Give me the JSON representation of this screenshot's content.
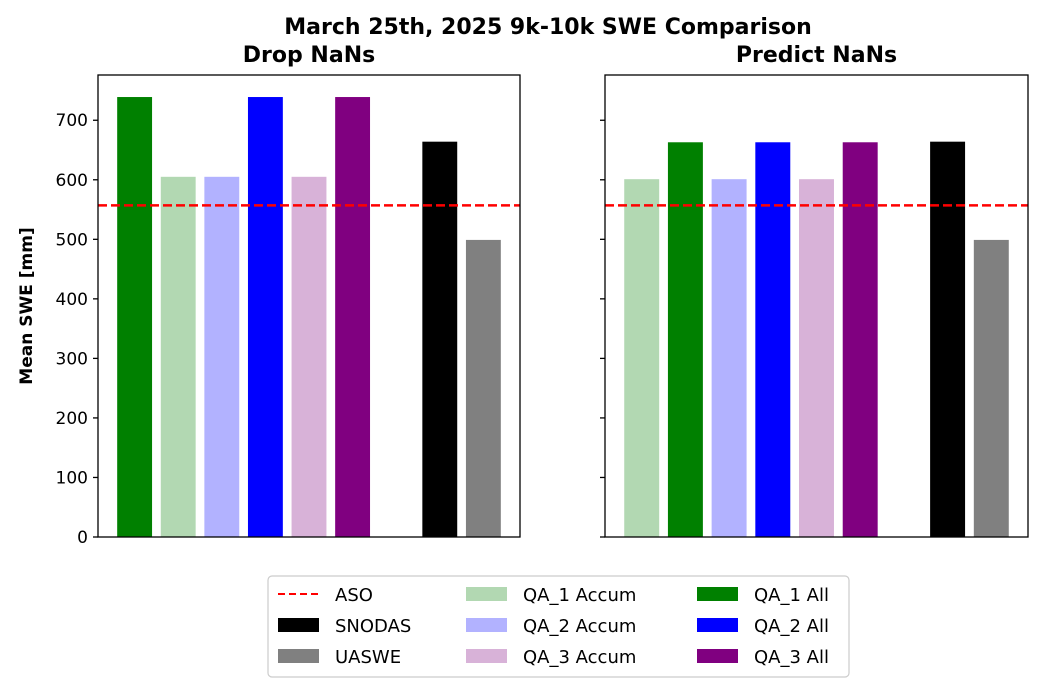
{
  "figure_title": "March 25th, 2025 9k-10k SWE Comparison",
  "colors": {
    "ASO": "#ff0000",
    "SNODAS": "#000000",
    "UASWE": "#808080",
    "QA_1 Accum": "#b2d8b2",
    "QA_2 Accum": "#b2b2ff",
    "QA_3 Accum": "#d8b2d8",
    "QA_1 All": "#008000",
    "QA_2 All": "#0000ff",
    "QA_3 All": "#800080"
  },
  "legend": {
    "position": "bottom-center",
    "columns": [
      [
        {
          "label": "ASO",
          "kind": "dashed-line"
        },
        {
          "label": "SNODAS",
          "kind": "patch"
        },
        {
          "label": "UASWE",
          "kind": "patch"
        }
      ],
      [
        {
          "label": "QA_1 Accum",
          "kind": "patch"
        },
        {
          "label": "QA_2 Accum",
          "kind": "patch"
        },
        {
          "label": "QA_3 Accum",
          "kind": "patch"
        }
      ],
      [
        {
          "label": "QA_1 All",
          "kind": "patch"
        },
        {
          "label": "QA_2 All",
          "kind": "patch"
        },
        {
          "label": "QA_3 All",
          "kind": "patch"
        }
      ]
    ]
  },
  "chart_data": [
    {
      "type": "bar",
      "title": "Drop NaNs",
      "ylabel": "Mean SWE [mm]",
      "xlabel": "",
      "ylim": [
        0,
        776
      ],
      "yticks": [
        0,
        100,
        200,
        300,
        400,
        500,
        600,
        700
      ],
      "show_ytick_labels": true,
      "grid": false,
      "reference_line": {
        "name": "ASO",
        "value": 557
      },
      "bars": [
        {
          "name": "QA_1 All",
          "value": 739
        },
        {
          "name": "QA_1 Accum",
          "value": 605
        },
        {
          "name": "QA_2 Accum",
          "value": 605
        },
        {
          "name": "QA_2 All",
          "value": 739
        },
        {
          "name": "QA_3 Accum",
          "value": 605
        },
        {
          "name": "QA_3 All",
          "value": 739
        },
        {
          "name": "",
          "value": 0
        },
        {
          "name": "SNODAS",
          "value": 664
        },
        {
          "name": "UASWE",
          "value": 499
        }
      ]
    },
    {
      "type": "bar",
      "title": "Predict NaNs",
      "ylabel": "",
      "xlabel": "",
      "ylim": [
        0,
        776
      ],
      "yticks": [
        0,
        100,
        200,
        300,
        400,
        500,
        600,
        700
      ],
      "show_ytick_labels": false,
      "grid": false,
      "reference_line": {
        "name": "ASO",
        "value": 557
      },
      "bars": [
        {
          "name": "QA_1 Accum",
          "value": 601
        },
        {
          "name": "QA_1 All",
          "value": 663
        },
        {
          "name": "QA_2 Accum",
          "value": 601
        },
        {
          "name": "QA_2 All",
          "value": 663
        },
        {
          "name": "QA_3 Accum",
          "value": 601
        },
        {
          "name": "QA_3 All",
          "value": 663
        },
        {
          "name": "",
          "value": 0
        },
        {
          "name": "SNODAS",
          "value": 664
        },
        {
          "name": "UASWE",
          "value": 499
        }
      ]
    }
  ]
}
